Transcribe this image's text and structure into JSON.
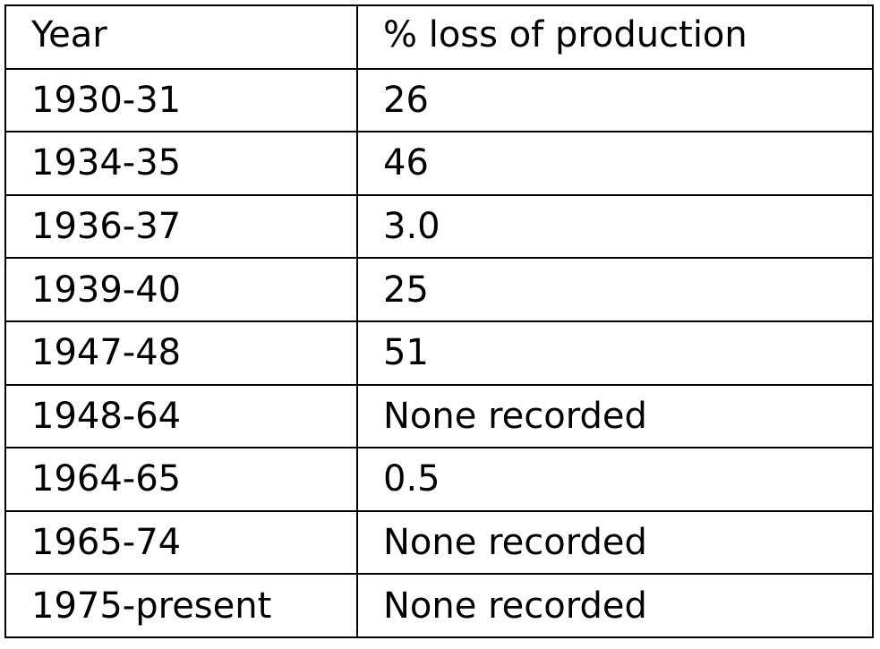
{
  "table": {
    "headers": [
      "Year",
      "% loss of production"
    ],
    "rows": [
      [
        "1930-31",
        "26"
      ],
      [
        "1934-35",
        "46"
      ],
      [
        "1936-37",
        "3.0"
      ],
      [
        "1939-40",
        "25"
      ],
      [
        "1947-48",
        "51"
      ],
      [
        "1948-64",
        "None recorded"
      ],
      [
        "1964-65",
        "0.5"
      ],
      [
        "1965-74",
        "None recorded"
      ],
      [
        "1975-present",
        "None recorded"
      ]
    ]
  }
}
